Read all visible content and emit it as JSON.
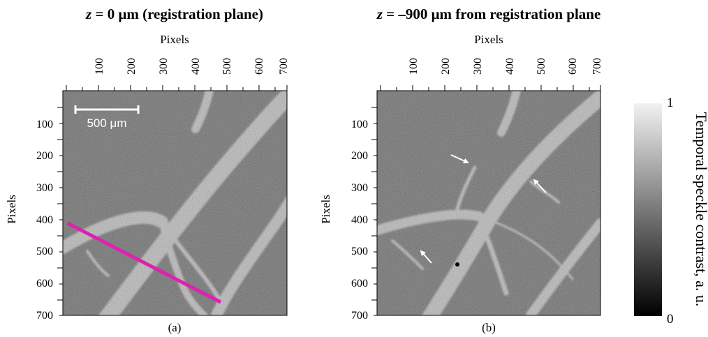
{
  "panels": [
    {
      "id": "a",
      "title_italic": "z",
      "title_rest": " = 0 μm (registration plane)",
      "x_axis_title": "Pixels",
      "y_axis_title": "Pixels",
      "x_ticks": [
        "100",
        "200",
        "300",
        "400",
        "500",
        "600",
        "700"
      ],
      "y_ticks": [
        "100",
        "200",
        "300",
        "400",
        "500",
        "600",
        "700"
      ],
      "caption": "(a)",
      "scalebar_label": "500 μm",
      "profile_line_color": "#e020b0"
    },
    {
      "id": "b",
      "title_italic": "z",
      "title_rest": " = –900 μm from registration plane",
      "x_axis_title": "Pixels",
      "y_axis_title": "Pixels",
      "x_ticks": [
        "100",
        "200",
        "300",
        "400",
        "500",
        "600",
        "700"
      ],
      "y_ticks": [
        "100",
        "200",
        "300",
        "400",
        "500",
        "600",
        "700"
      ],
      "caption": "(b)",
      "arrow_color": "#ffffff"
    }
  ],
  "colorbar": {
    "title": "Temporal speckle contrast, a. u.",
    "max_label": "1",
    "min_label": "0",
    "gradient_top": "#f2f2f2",
    "gradient_bottom": "#000000"
  },
  "colors": {
    "image_background": "#3a3a3a",
    "vessel": "#b5b5b5"
  }
}
